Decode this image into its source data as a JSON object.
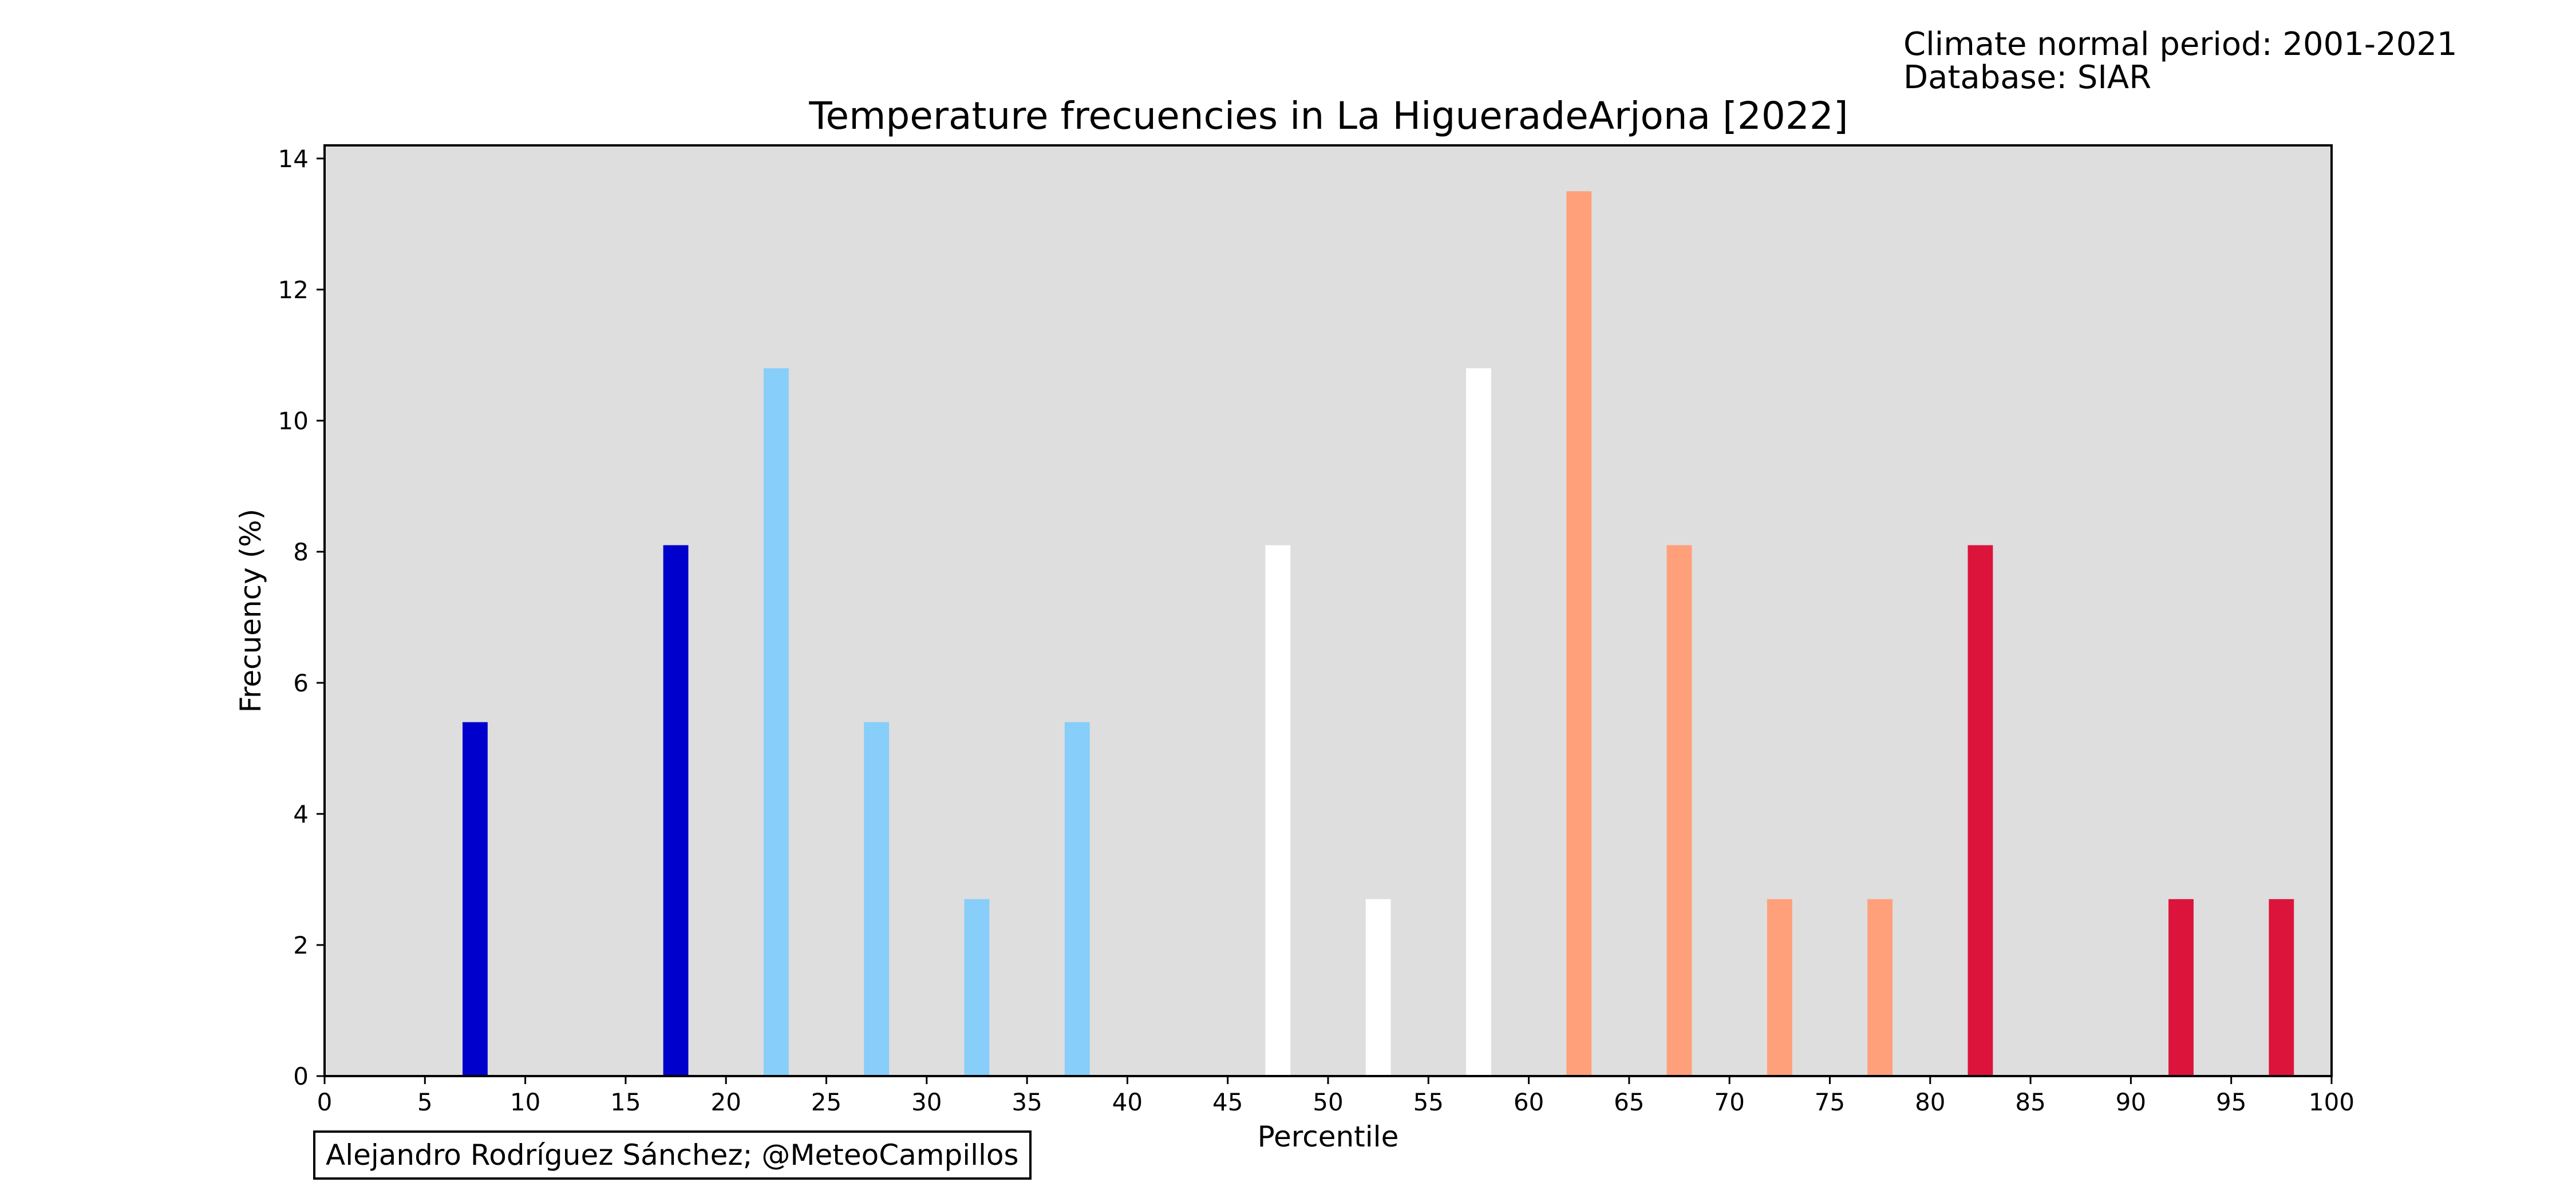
{
  "info": {
    "normal_period": "Climate normal period: 2001-2021",
    "database": "Database: SIAR"
  },
  "credit": "Alejandro Rodríguez Sánchez; @MeteoCampillos",
  "colors": {
    "plot_background": "#dedede",
    "cold_dark": "#0000cd",
    "cold_light": "#87cefa",
    "neutral": "#ffffff",
    "warm_light": "#ffa07a",
    "warm_dark": "#dc143c"
  },
  "chart_data": {
    "type": "bar",
    "title": "Temperature frecuencies in La HigueradeArjona [2022]",
    "xlabel": "Percentile",
    "ylabel": "Frecuency (%)",
    "xlim": [
      0,
      100
    ],
    "ylim": [
      0,
      14.2
    ],
    "xticks": [
      "0",
      "5",
      "10",
      "15",
      "20",
      "25",
      "30",
      "35",
      "40",
      "45",
      "50",
      "55",
      "60",
      "65",
      "70",
      "75",
      "80",
      "85",
      "90",
      "95",
      "100"
    ],
    "yticks": [
      "0",
      "2",
      "4",
      "6",
      "8",
      "10",
      "12",
      "14"
    ],
    "grid": false,
    "legend": "none",
    "bars": [
      {
        "x": 7.5,
        "value": 5.4,
        "color": "#0000cd"
      },
      {
        "x": 17.5,
        "value": 8.1,
        "color": "#0000cd"
      },
      {
        "x": 22.5,
        "value": 10.8,
        "color": "#87cefa"
      },
      {
        "x": 27.5,
        "value": 5.4,
        "color": "#87cefa"
      },
      {
        "x": 32.5,
        "value": 2.7,
        "color": "#87cefa"
      },
      {
        "x": 37.5,
        "value": 5.4,
        "color": "#87cefa"
      },
      {
        "x": 47.5,
        "value": 8.1,
        "color": "#ffffff"
      },
      {
        "x": 52.5,
        "value": 2.7,
        "color": "#ffffff"
      },
      {
        "x": 57.5,
        "value": 10.8,
        "color": "#ffffff"
      },
      {
        "x": 62.5,
        "value": 13.5,
        "color": "#ffa07a"
      },
      {
        "x": 67.5,
        "value": 8.1,
        "color": "#ffa07a"
      },
      {
        "x": 72.5,
        "value": 2.7,
        "color": "#ffa07a"
      },
      {
        "x": 77.5,
        "value": 2.7,
        "color": "#ffa07a"
      },
      {
        "x": 82.5,
        "value": 8.1,
        "color": "#dc143c"
      },
      {
        "x": 92.5,
        "value": 2.7,
        "color": "#dc143c"
      },
      {
        "x": 97.5,
        "value": 2.7,
        "color": "#dc143c"
      }
    ]
  }
}
